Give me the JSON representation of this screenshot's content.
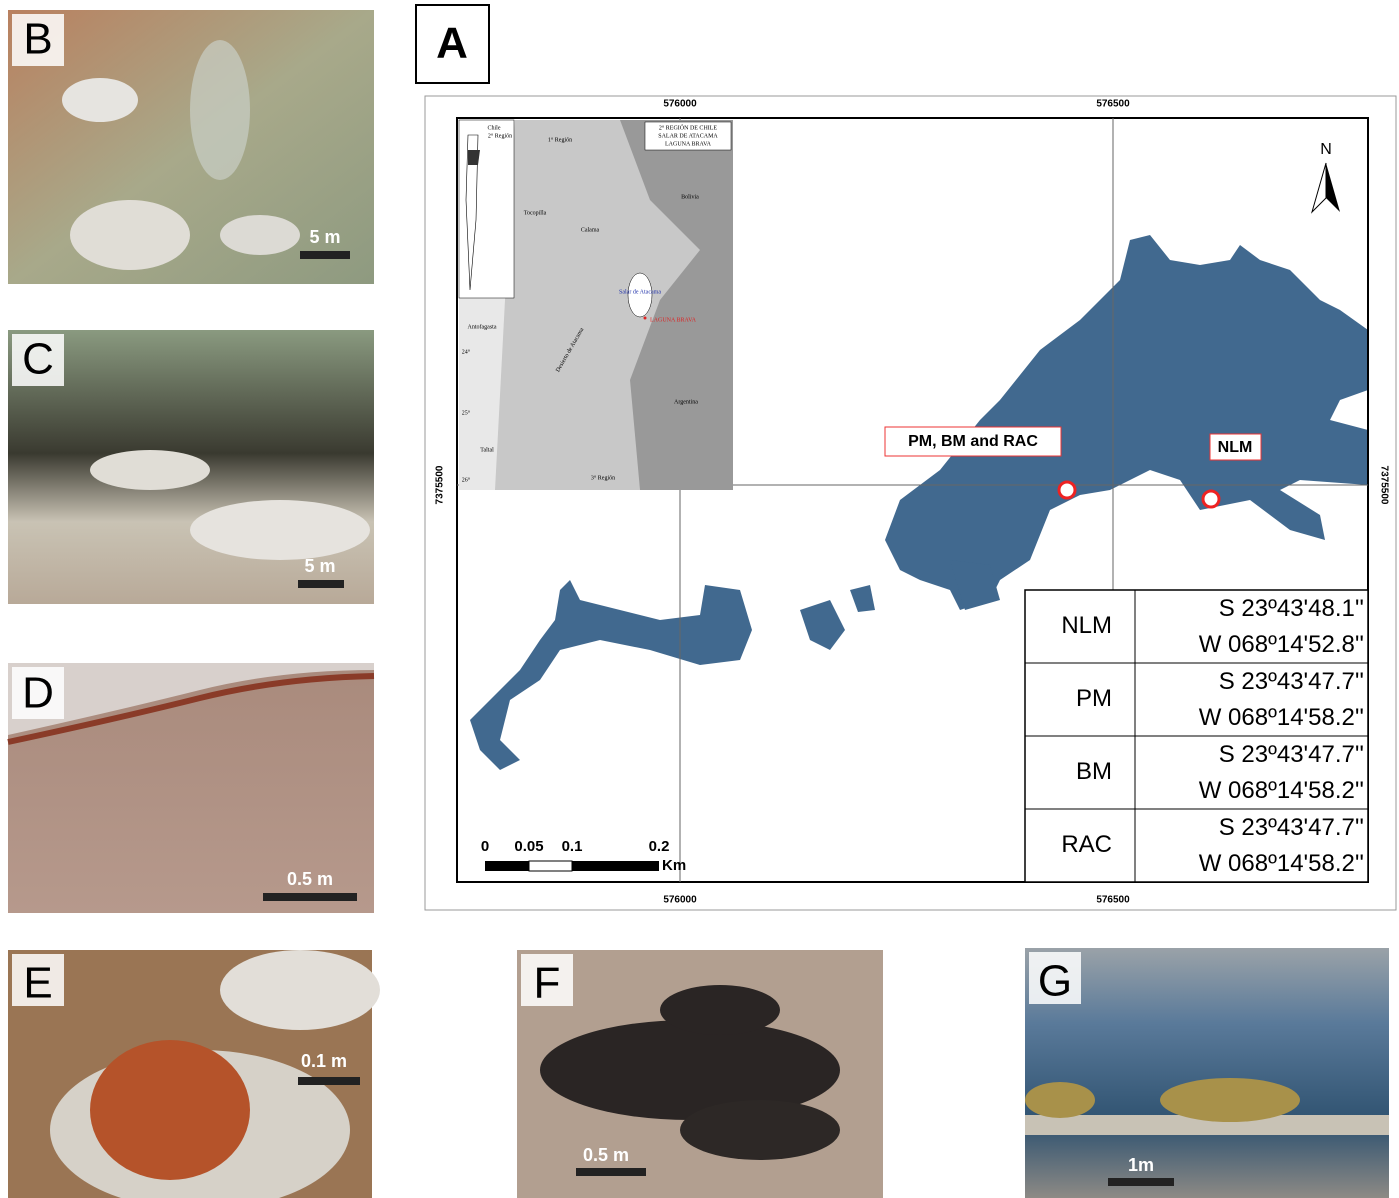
{
  "panels": [
    {
      "label": "B",
      "scale": "5 m"
    },
    {
      "label": "C",
      "scale": "5 m"
    },
    {
      "label": "D",
      "scale": "0.5 m"
    },
    {
      "label": "E",
      "scale": "0.1 m"
    },
    {
      "label": "F",
      "scale": "0.5 m"
    },
    {
      "label": "G",
      "scale": "1m"
    }
  ],
  "map": {
    "label": "A",
    "easting": [
      "576000",
      "576500"
    ],
    "northing": "7375500",
    "north": "N",
    "sites": [
      "PM, BM and RAC",
      "NLM"
    ],
    "scale_bar": [
      "0",
      "0.05",
      "0.1",
      "0.2",
      "Km"
    ],
    "inset": {
      "title": [
        "2° REGIÓN DE CHILE",
        "SALAR DE ATACAMA",
        "LAGUNA BRAVA"
      ],
      "places": [
        "Chile",
        "2° Región",
        "1° Región",
        "Bolivia",
        "Tocopilla",
        "Calama",
        "Salar de Atacama",
        "LAGUNA BRAVA",
        "Antofagasta",
        "Desierto de Atacama",
        "Argentina",
        "Taltal",
        "3° Región",
        "24°",
        "25°",
        "26°"
      ]
    },
    "table": [
      [
        "NLM",
        "S 23º43'48.1''",
        "W 068º14'52.8''"
      ],
      [
        "PM",
        "S 23º43'47.7''",
        "W 068º14'58.2''"
      ],
      [
        "BM",
        "S 23º43'47.7''",
        "W 068º14'58.2''"
      ],
      [
        "RAC",
        "S 23º43'47.7''",
        "W 068º14'58.2''"
      ]
    ]
  }
}
